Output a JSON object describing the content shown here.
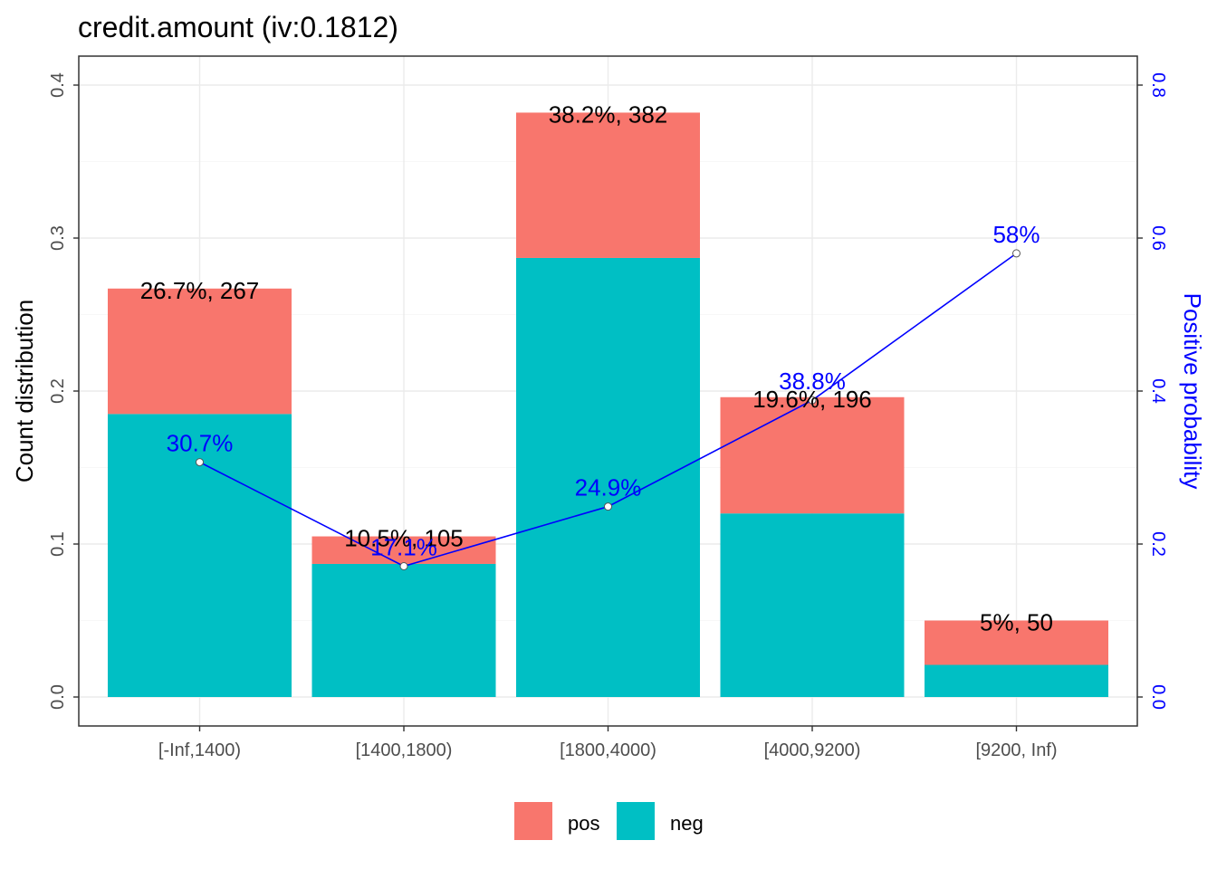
{
  "chart_data": {
    "type": "bar",
    "title": "credit.amount  (iv:0.1812)",
    "ylabel": "Count distribution",
    "y2label": "Positive probability",
    "ylim": [
      0,
      0.4
    ],
    "y2lim": [
      0,
      0.8
    ],
    "yticks": [
      "0.0",
      "0.1",
      "0.2",
      "0.3",
      "0.4"
    ],
    "y2ticks": [
      "0.0",
      "0.2",
      "0.4",
      "0.6",
      "0.8"
    ],
    "categories": [
      "[-Inf,1400)",
      "[1400,1800)",
      "[1800,4000)",
      "[4000,9200)",
      "[9200, Inf)"
    ],
    "series": [
      {
        "name": "neg",
        "values": [
          0.185,
          0.087,
          0.287,
          0.12,
          0.021
        ]
      },
      {
        "name": "pos",
        "values": [
          0.082,
          0.018,
          0.095,
          0.076,
          0.029
        ]
      }
    ],
    "bar_labels": [
      "26.7%, 267",
      "10.5%, 105",
      "38.2%, 382",
      "19.6%, 196",
      "5%, 50"
    ],
    "positive_probability": [
      0.307,
      0.171,
      0.249,
      0.388,
      0.58
    ],
    "positive_probability_labels": [
      "30.7%",
      "17.1%",
      "24.9%",
      "38.8%",
      "58%"
    ],
    "legend": [
      {
        "label": "pos",
        "color": "#F8766D"
      },
      {
        "label": "neg",
        "color": "#00BFC4"
      }
    ],
    "legend_position": "bottom",
    "grid": true,
    "colors": {
      "pos": "#F8766D",
      "neg": "#00BFC4",
      "line": "#0000ff"
    }
  }
}
